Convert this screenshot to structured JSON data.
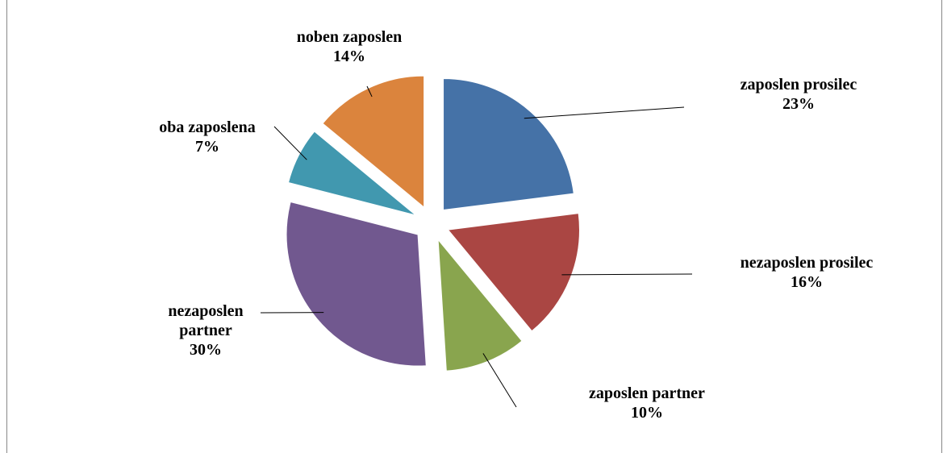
{
  "chart_data": {
    "type": "pie",
    "categories": [
      "zaposlen prosilec",
      "nezaposlen prosilec",
      "zaposlen partner",
      "nezaposlen partner",
      "oba zaposlena",
      "noben zaposlen"
    ],
    "values": [
      23,
      16,
      10,
      30,
      7,
      14
    ],
    "value_labels": [
      "23%",
      "16%",
      "10%",
      "30%",
      "7%",
      "14%"
    ],
    "colors": [
      "#4572a7",
      "#aa4643",
      "#89a54e",
      "#71588f",
      "#4198af",
      "#db843d"
    ]
  }
}
